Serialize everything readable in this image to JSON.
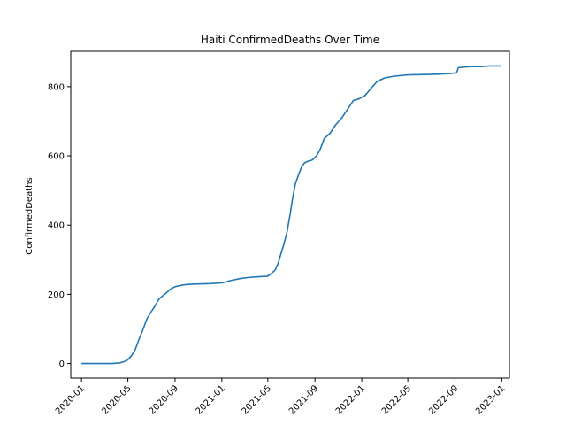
{
  "chart_data": {
    "type": "line",
    "title": "Haiti  ConfirmedDeaths Over Time",
    "xlabel": "",
    "ylabel": "ConfirmedDeaths",
    "xlim": [
      "2019-12-04",
      "2023-01-21"
    ],
    "ylim": [
      -42,
      902
    ],
    "x_ticks": [
      "2020-01",
      "2020-05",
      "2020-09",
      "2021-01",
      "2021-05",
      "2021-09",
      "2022-01",
      "2022-05",
      "2022-09",
      "2023-01"
    ],
    "y_ticks": [
      0,
      200,
      400,
      600,
      800
    ],
    "grid": false,
    "series": [
      {
        "color": "#1f77b4",
        "x": [
          "2020-01-01",
          "2020-03-20",
          "2020-04-10",
          "2020-04-20",
          "2020-04-30",
          "2020-05-10",
          "2020-05-20",
          "2020-05-30",
          "2020-06-10",
          "2020-06-20",
          "2020-07-01",
          "2020-07-10",
          "2020-07-20",
          "2020-08-01",
          "2020-08-10",
          "2020-08-20",
          "2020-09-01",
          "2020-09-20",
          "2020-10-10",
          "2020-11-01",
          "2020-12-01",
          "2021-01-01",
          "2021-01-25",
          "2021-02-20",
          "2021-03-15",
          "2021-04-10",
          "2021-04-30",
          "2021-05-10",
          "2021-05-20",
          "2021-05-28",
          "2021-06-05",
          "2021-06-12",
          "2021-06-20",
          "2021-06-28",
          "2021-07-05",
          "2021-07-12",
          "2021-07-20",
          "2021-07-28",
          "2021-08-05",
          "2021-08-15",
          "2021-08-25",
          "2021-09-05",
          "2021-09-15",
          "2021-09-25",
          "2021-10-10",
          "2021-10-25",
          "2021-11-10",
          "2021-11-25",
          "2021-12-10",
          "2021-12-25",
          "2022-01-10",
          "2022-01-25",
          "2022-02-10",
          "2022-03-01",
          "2022-03-25",
          "2022-05-01",
          "2022-06-15",
          "2022-07-15",
          "2022-08-20",
          "2022-09-05",
          "2022-09-10",
          "2022-10-10",
          "2022-11-10",
          "2022-12-01",
          "2022-12-31"
        ],
        "y": [
          0,
          0,
          2,
          5,
          10,
          22,
          40,
          70,
          100,
          130,
          150,
          165,
          185,
          197,
          205,
          215,
          222,
          227,
          229,
          230,
          231,
          233,
          240,
          246,
          249,
          251,
          252,
          260,
          270,
          290,
          320,
          345,
          380,
          430,
          480,
          520,
          545,
          568,
          580,
          585,
          588,
          600,
          620,
          650,
          665,
          690,
          710,
          735,
          760,
          765,
          775,
          795,
          815,
          825,
          830,
          834,
          835,
          836,
          838,
          840,
          855,
          858,
          858,
          860,
          860
        ]
      }
    ]
  }
}
